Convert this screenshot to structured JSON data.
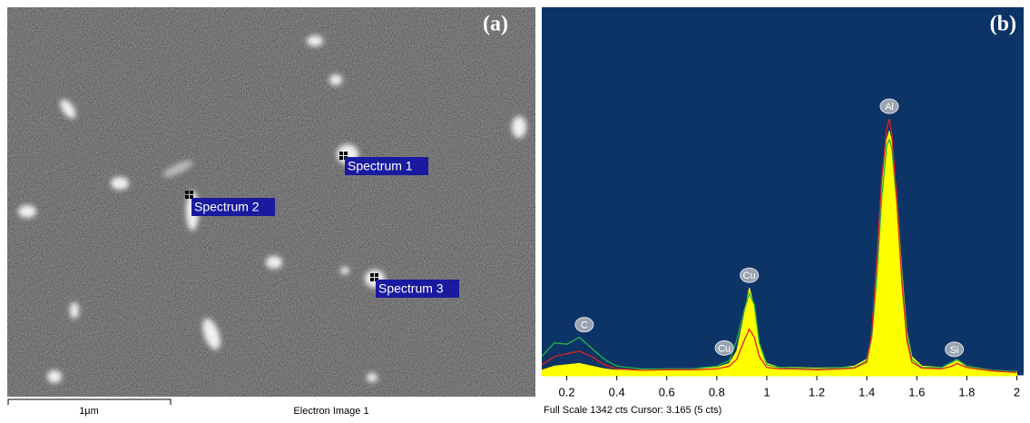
{
  "image_panel": {
    "panel_label": "(a)",
    "spots": [
      "Spectrum 1",
      "Spectrum 2",
      "Spectrum 3"
    ],
    "scale_bar": "1µm",
    "caption": "Electron Image 1"
  },
  "chart_data": {
    "type": "area",
    "panel_label": "(b)",
    "footer": "Full Scale 1342 cts Cursor: 3.165  (5 cts)",
    "x": [
      0.1,
      0.15,
      0.2,
      0.25,
      0.3,
      0.35,
      0.4,
      0.5,
      0.6,
      0.7,
      0.8,
      0.85,
      0.88,
      0.91,
      0.93,
      0.95,
      0.97,
      1.0,
      1.05,
      1.1,
      1.2,
      1.3,
      1.35,
      1.4,
      1.42,
      1.44,
      1.46,
      1.48,
      1.49,
      1.5,
      1.52,
      1.54,
      1.56,
      1.58,
      1.62,
      1.7,
      1.74,
      1.76,
      1.8,
      1.9,
      2.0
    ],
    "series": [
      {
        "color": "#ffff00",
        "values": [
          20,
          35,
          40,
          45,
          35,
          25,
          20,
          22,
          25,
          25,
          30,
          45,
          90,
          220,
          320,
          250,
          110,
          45,
          30,
          30,
          28,
          30,
          35,
          60,
          150,
          380,
          680,
          860,
          890,
          850,
          650,
          380,
          160,
          70,
          35,
          30,
          45,
          55,
          35,
          20,
          15
        ]
      },
      {
        "color": "#22b14c",
        "values": [
          70,
          120,
          115,
          140,
          100,
          60,
          35,
          25,
          25,
          25,
          35,
          55,
          130,
          240,
          300,
          260,
          120,
          40,
          30,
          28,
          25,
          30,
          30,
          55,
          140,
          360,
          650,
          840,
          860,
          830,
          630,
          360,
          150,
          60,
          30,
          30,
          50,
          60,
          35,
          20,
          15
        ]
      },
      {
        "color": "#e02020",
        "values": [
          40,
          70,
          80,
          90,
          70,
          40,
          25,
          20,
          22,
          22,
          25,
          35,
          60,
          130,
          170,
          140,
          70,
          30,
          25,
          25,
          22,
          25,
          28,
          50,
          160,
          420,
          720,
          900,
          935,
          880,
          640,
          340,
          130,
          50,
          28,
          25,
          35,
          45,
          30,
          18,
          12
        ]
      }
    ],
    "annotations": [
      {
        "label": "C",
        "x": 0.27
      },
      {
        "label": "Cu",
        "x": 0.83
      },
      {
        "label": "Cu",
        "x": 0.93
      },
      {
        "label": "Al",
        "x": 1.49
      },
      {
        "label": "Si",
        "x": 1.75
      }
    ],
    "xlim": [
      0.1,
      2.02
    ],
    "ylim": [
      0,
      1342
    ],
    "xticks": [
      0.2,
      0.4,
      0.6,
      0.8,
      1,
      1.2,
      1.4,
      1.6,
      1.8,
      2
    ]
  }
}
